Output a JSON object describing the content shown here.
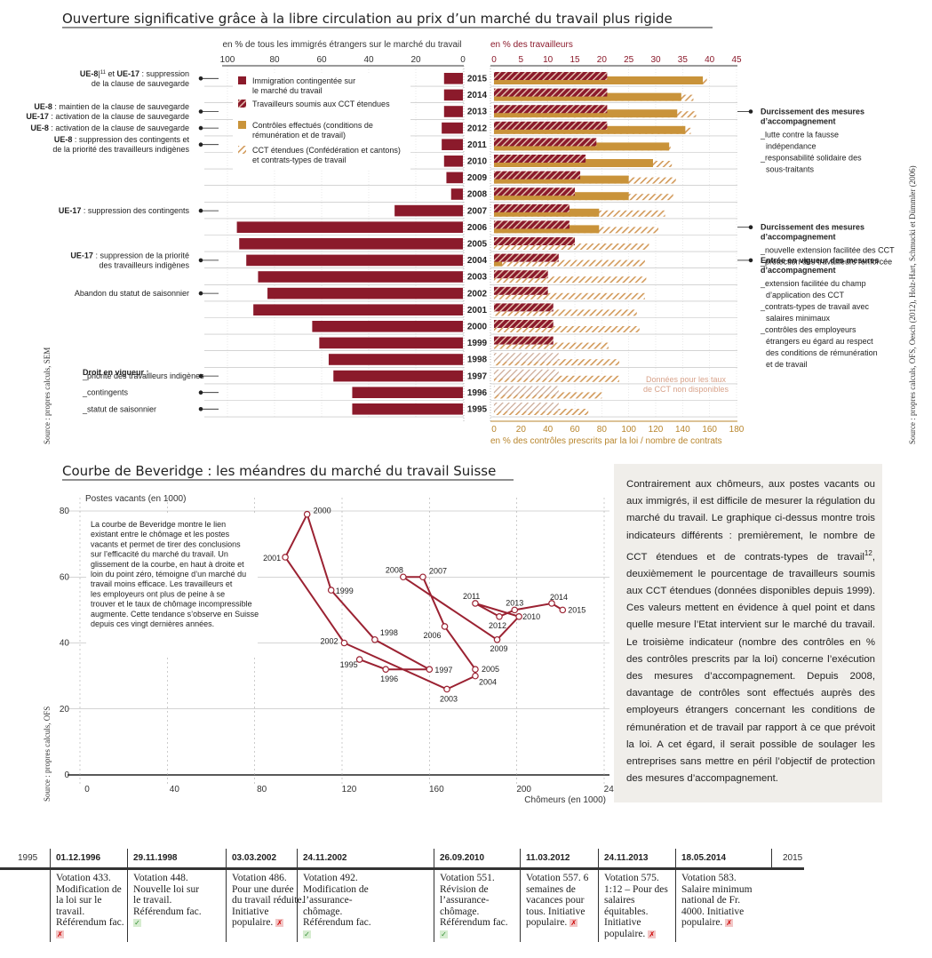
{
  "titles": {
    "top": "Ouverture significative grâce à la libre circulation au prix d’un marché du travail plus rigide",
    "bottom": "Courbe de Beveridge : les méandres du marché du travail Suisse"
  },
  "colors": {
    "maroon": "#8b1a2b",
    "gold": "#c9933a",
    "hatch_light": "#dca882",
    "grey_bg": "#f0eeea"
  },
  "chart_data": [
    {
      "type": "bar",
      "title": "Ouverture significative grâce à la libre circulation au prix d’un marché du travail plus rigide",
      "years": [
        2015,
        2014,
        2013,
        2012,
        2011,
        2010,
        2009,
        2008,
        2007,
        2006,
        2005,
        2004,
        2003,
        2002,
        2001,
        2000,
        1999,
        1998,
        1997,
        1996,
        1995
      ],
      "left_axis": {
        "label": "en % de tous les immigrés étrangers sur le marché du travail",
        "ticks": [
          100,
          80,
          60,
          40,
          20,
          0
        ],
        "range": [
          100,
          0
        ]
      },
      "right_axis_top": {
        "label": "en % des travailleurs",
        "ticks": [
          0,
          5,
          10,
          15,
          20,
          25,
          30,
          35,
          40,
          45
        ],
        "range": [
          0,
          45
        ]
      },
      "right_axis_bottom": {
        "label": "en % des contrôles prescrits par la loi / nombre de contrats",
        "ticks": [
          0,
          20,
          40,
          60,
          80,
          100,
          120,
          140,
          160,
          180
        ],
        "range": [
          0,
          180
        ]
      },
      "series": [
        {
          "name": "Immigration contingentée sur le marché du travail",
          "style": "solid-maroon",
          "axis": "left",
          "values": [
            8,
            8,
            8,
            9,
            9,
            8,
            7,
            5,
            29,
            96,
            95,
            92,
            87,
            83,
            89,
            64,
            61,
            57,
            55,
            47,
            47
          ]
        },
        {
          "name": "Travailleurs soumis aux CCT étendues",
          "style": "hatch-maroon",
          "axis": "right_top",
          "values": [
            21,
            21,
            21,
            21,
            19,
            17,
            16,
            15,
            14,
            14,
            15,
            12,
            10,
            10,
            11,
            11,
            11,
            null,
            null,
            null,
            null
          ]
        },
        {
          "name": "Contrôles effectués (conditions de rémunération et de travail)",
          "style": "solid-gold",
          "axis": "right_bottom",
          "values": [
            155,
            139,
            136,
            142,
            130,
            118,
            100,
            100,
            78,
            78,
            null,
            6,
            null,
            null,
            null,
            null,
            null,
            null,
            null,
            null,
            null
          ]
        },
        {
          "name": "CCT étendues (Confédération et cantons) et contrats-types de travail",
          "style": "hatch-gold",
          "axis": "right_bottom",
          "values": [
            158,
            148,
            150,
            146,
            131,
            132,
            135,
            133,
            127,
            122,
            115,
            112,
            113,
            112,
            106,
            108,
            85,
            93,
            93,
            80,
            70
          ]
        }
      ],
      "no_data_note": "Données pour les taux de CCT non disponibles",
      "source": "Source : propres calculs, SEM",
      "source_right": "Source : propres calculs, OFS, Oesch (2012), Holz-Hart, Schmucki et Dümmler (2006)"
    },
    {
      "type": "line",
      "title": "Courbe de Beveridge : les méandres du marché du travail Suisse",
      "xlabel": "Chômeurs (en 1000)",
      "ylabel": "Postes vacants (en 1000)",
      "xlim": [
        0,
        240
      ],
      "ylim": [
        0,
        80
      ],
      "xticks": [
        0,
        40,
        80,
        120,
        160,
        200,
        240
      ],
      "yticks": [
        0,
        20,
        40,
        60,
        80
      ],
      "points": [
        {
          "year": "1995",
          "x": 128,
          "y": 35
        },
        {
          "year": "1996",
          "x": 140,
          "y": 32
        },
        {
          "year": "1997",
          "x": 160,
          "y": 32
        },
        {
          "year": "1998",
          "x": 135,
          "y": 41
        },
        {
          "year": "1999",
          "x": 115,
          "y": 56
        },
        {
          "year": "2000",
          "x": 104,
          "y": 79
        },
        {
          "year": "2001",
          "x": 94,
          "y": 66
        },
        {
          "year": "2002",
          "x": 121,
          "y": 40
        },
        {
          "year": "2003",
          "x": 168,
          "y": 26
        },
        {
          "year": "2004",
          "x": 181,
          "y": 30
        },
        {
          "year": "2005",
          "x": 181,
          "y": 32
        },
        {
          "year": "2006",
          "x": 167,
          "y": 45
        },
        {
          "year": "2007",
          "x": 157,
          "y": 60
        },
        {
          "year": "2008",
          "x": 148,
          "y": 60
        },
        {
          "year": "2009",
          "x": 191,
          "y": 41
        },
        {
          "year": "2010",
          "x": 201,
          "y": 48
        },
        {
          "year": "2011",
          "x": 181,
          "y": 52
        },
        {
          "year": "2012",
          "x": 192,
          "y": 48
        },
        {
          "year": "2013",
          "x": 199,
          "y": 50
        },
        {
          "year": "2014",
          "x": 216,
          "y": 52
        },
        {
          "year": "2015",
          "x": 221,
          "y": 50
        }
      ],
      "note": "La courbe de Beveridge montre le lien existant entre le chômage et les postes vacants et permet de tirer des conclusions sur l’efficacité du marché du travail. Un glissement de la courbe, en haut à droite et loin du point zéro, témoigne d’un marché du travail moins efficace. Les travailleurs et les employeurs ont plus de peine à se trouver et le taux de chômage incompressible augmente. Cette tendance s’observe en Suisse depuis ces vingt dernières années.",
      "source": "Source : propres calculs, OFS"
    }
  ],
  "left_annotations": [
    {
      "year": 2015,
      "lines": [
        [
          "UE-8",
          "|11 et ",
          "UE-17",
          " : suppression"
        ],
        [
          "de la clause de sauvegarde"
        ]
      ]
    },
    {
      "year": 2013,
      "lines": [
        [
          "UE-8",
          " : maintien de la clause de sauvegarde"
        ],
        [
          "UE-17",
          " : activation de la clause de sauvegarde"
        ]
      ]
    },
    {
      "year": 2012,
      "lines": [
        [
          "UE-8",
          " : activation de la clause de sauvegarde"
        ]
      ]
    },
    {
      "year": 2011,
      "lines": [
        [
          "UE-8",
          " : suppression des contingents et"
        ],
        [
          "de la priorité des travailleurs indigènes"
        ]
      ]
    },
    {
      "year": 2007,
      "lines": [
        [
          "UE-17",
          " : suppression des contingents"
        ]
      ]
    },
    {
      "year": 2004,
      "lines": [
        [
          "UE-17",
          " : suppression de la priorité"
        ],
        [
          "des travailleurs indigènes"
        ]
      ]
    },
    {
      "year": 2002,
      "lines": [
        [
          "Abandon du statut de saisonnier"
        ]
      ]
    }
  ],
  "left_in_force": {
    "title": "Droit en vigueur :",
    "items": [
      "_priorité des travailleurs indigènes",
      "_contingents",
      "_statut de saisonnier"
    ]
  },
  "right_annotations": [
    {
      "year": 2013,
      "title": [
        "Durcissement des mesures",
        "d’accompagnement"
      ],
      "items": [
        "_lutte contre la fausse",
        " indépendance",
        "_responsabilité solidaire des",
        " sous-traitants"
      ]
    },
    {
      "year": 2006,
      "title": [
        "Durcissement des mesures",
        "d’accompagnement"
      ],
      "items": [
        "_nouvelle extension facilitée des CCT",
        "_protection des travailleurs renforcée"
      ]
    },
    {
      "year": 2004,
      "title": [
        "Entrée en vigueur des mesures",
        "d’accompagnement"
      ],
      "items": [
        "_extension facilitée du champ",
        " d’application des CCT",
        "_contrats-types de travail avec",
        " salaires minimaux",
        "_contrôles des employeurs",
        " étrangers eu égard au respect",
        " des conditions de rémunération",
        " et de travail"
      ]
    }
  ],
  "textbox": "Contrairement aux chômeurs, aux postes vacants ou aux immigrés, il est difficile de mesurer la régulation du marché du travail. Le graphique ci-dessus montre trois indicateurs différents : premièrement, le nombre de CCT étendues et de contrats-types de travail12, deuxièmement le pourcentage de travailleurs soumis aux CCT étendues (données disponibles depuis 1999). Ces valeurs mettent en évidence à quel point et dans quelle mesure l’Etat intervient sur le marché du travail. Le troisième indicateur (nombre des contrôles en % des contrôles prescrits par la loi) concerne l’exécution des mesures d’accompagnement. Depuis 2008, davantage de contrôles sont effectués auprès des employeurs étrangers concernant les conditions de rémunération et de travail par rapport à ce que prévoit la loi. A cet égard, il serait possible de soulager les entreprises sans mettre en péril l’objectif de protection des mesures d’accompagnement.",
  "timeline": {
    "start": "1995",
    "end": "2015",
    "votes": [
      {
        "date": "01.12.1996",
        "text": "Votation 433. Modification de la loi sur le travail. Référendum fac.",
        "result": "rejected"
      },
      {
        "date": "29.11.1998",
        "text": "Votation 448. Nouvelle loi sur le travail. Référendum fac.",
        "result": "accepted"
      },
      {
        "date": "03.03.2002",
        "text": "Votation 486. Pour une durée du travail réduite. Initiative populaire.",
        "result": "rejected"
      },
      {
        "date": "24.11.2002",
        "text": "Votation 492. Modification de l’assurance-chômage. Référendum fac.",
        "result": "accepted"
      },
      {
        "date": "26.09.2010",
        "text": "Votation 551. Révision de l’assurance-chômage. Référendum fac.",
        "result": "accepted"
      },
      {
        "date": "11.03.2012",
        "text": "Votation 557. 6 semaines de vacances pour tous. Initiative populaire.",
        "result": "rejected"
      },
      {
        "date": "24.11.2013",
        "text": "Votation 575. 1:12 – Pour des salaires équitables. Initiative populaire.",
        "result": "rejected"
      },
      {
        "date": "18.05.2014",
        "text": "Votation 583. Salaire minimum national de Fr. 4000. Initiative populaire.",
        "result": "rejected"
      }
    ]
  }
}
